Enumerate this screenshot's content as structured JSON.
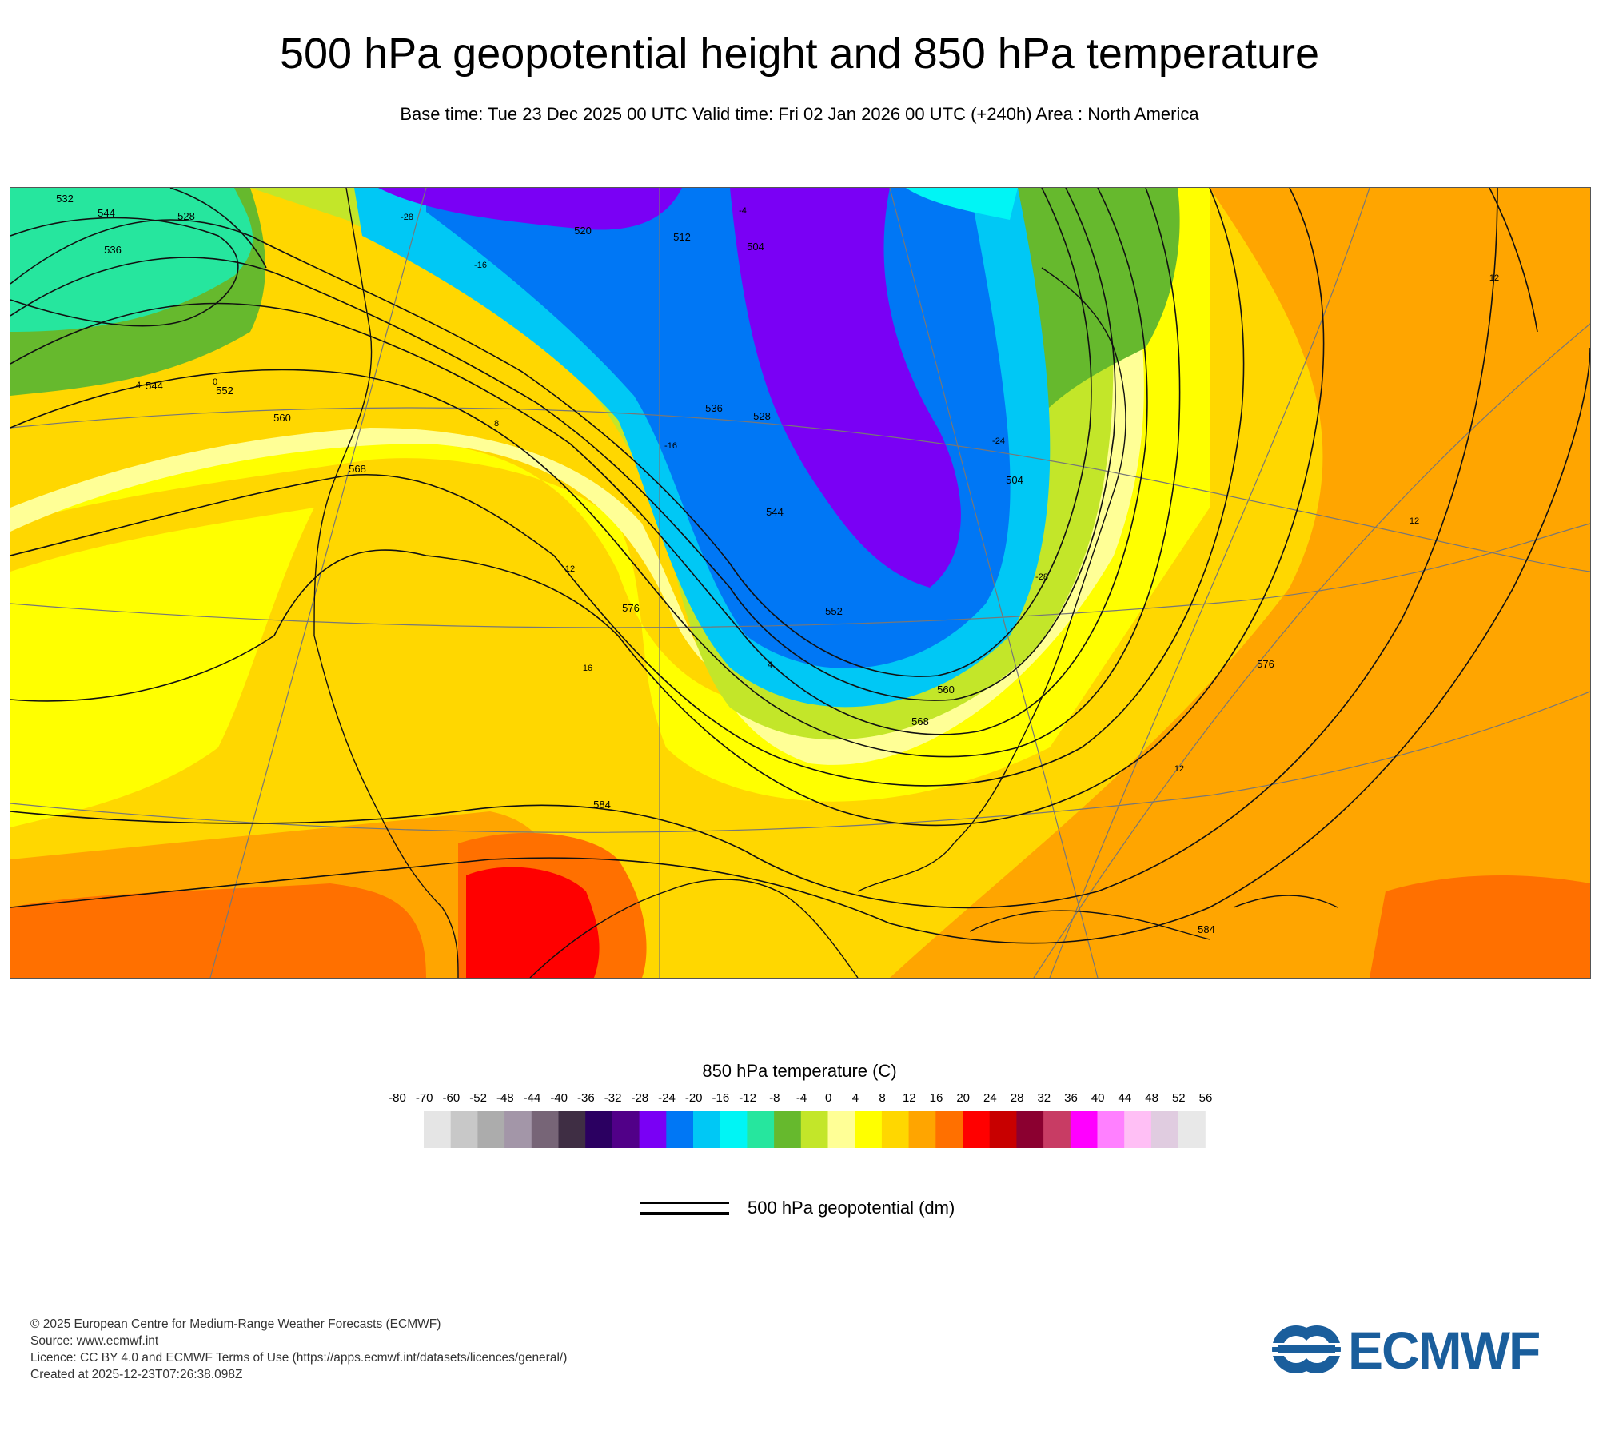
{
  "title": "500 hPa geopotential height and 850 hPa temperature",
  "subtitle": "Base time: Tue 23 Dec 2025 00 UTC Valid time: Fri 02 Jan 2026 00 UTC (+240h) Area : North America",
  "map": {
    "contour_labels": [
      "532",
      "544",
      "536",
      "528",
      "544",
      "552",
      "560",
      "568",
      "576",
      "584",
      "520",
      "512",
      "504",
      "536",
      "528",
      "544",
      "552",
      "560",
      "568",
      "576",
      "584",
      "504"
    ],
    "temperature_labels": [
      "-28",
      "-16",
      "4",
      "0",
      "8",
      "12",
      "12",
      "12",
      "16",
      "12",
      "-4",
      "-16",
      "-24",
      "-28",
      "4"
    ]
  },
  "legend": {
    "temperature_title": "850 hPa temperature (C)",
    "ticks": [
      "-80",
      "-70",
      "-60",
      "-52",
      "-48",
      "-44",
      "-40",
      "-36",
      "-32",
      "-28",
      "-24",
      "-20",
      "-16",
      "-12",
      "-8",
      "-4",
      "0",
      "4",
      "8",
      "12",
      "16",
      "20",
      "24",
      "28",
      "32",
      "36",
      "40",
      "44",
      "48",
      "52",
      "56"
    ],
    "colors": [
      "#e5e5e5",
      "#c8c8c8",
      "#acacac",
      "#a396a8",
      "#776577",
      "#3f2e44",
      "#2b0061",
      "#510088",
      "#7a00f5",
      "#0077f5",
      "#00c8f5",
      "#00f5f5",
      "#26e69e",
      "#66b92d",
      "#c3e629",
      "#ffff96",
      "#ffff00",
      "#ffd700",
      "#ffa500",
      "#ff7000",
      "#ff0000",
      "#c80000",
      "#8b0030",
      "#c83c64",
      "#ff00ff",
      "#ff80ff",
      "#ffbff5",
      "#e0cce0",
      "#e8e8e8"
    ],
    "geopotential_label": "500 hPa geopotential (dm)"
  },
  "footer": {
    "line1": "© 2025 European Centre for Medium-Range Weather Forecasts (ECMWF)",
    "line2": "Source: www.ecmwf.int",
    "line3": "Licence: CC BY 4.0 and ECMWF Terms of Use (https://apps.ecmwf.int/datasets/licences/general/)",
    "line4": "Created at 2025-12-23T07:26:38.098Z"
  },
  "logo": {
    "text": "ECMWF",
    "color": "#1a5e9c"
  }
}
